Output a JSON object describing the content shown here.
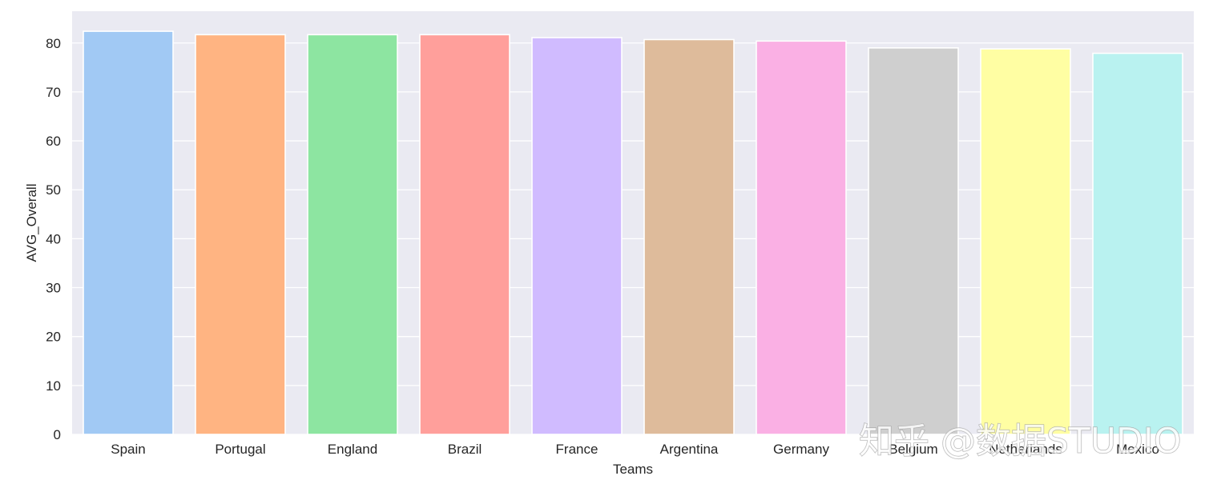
{
  "chart_data": {
    "type": "bar",
    "title": "",
    "xlabel": "Teams",
    "ylabel": "AVG_Overall",
    "categories": [
      "Spain",
      "Portugal",
      "England",
      "Brazil",
      "France",
      "Argentina",
      "Germany",
      "Belgium",
      "Netherlands",
      "Mexico"
    ],
    "values": [
      82.4,
      81.7,
      81.7,
      81.7,
      81.1,
      80.7,
      80.4,
      79.0,
      78.8,
      77.9
    ],
    "ylim": [
      0,
      86.5
    ],
    "yticks": [
      0,
      10,
      20,
      30,
      40,
      50,
      60,
      70,
      80
    ],
    "grid": true,
    "background": "#eaeaf2",
    "grid_color": "#ffffff",
    "bar_edge_color": "#ffffff",
    "colors": [
      "#a1c9f4",
      "#ffb482",
      "#8de5a1",
      "#ff9f9b",
      "#d0bbff",
      "#debb9b",
      "#fab0e4",
      "#cfcfcf",
      "#fffea3",
      "#b9f2f0"
    ]
  },
  "watermark": {
    "text": "知乎 @数据STUDIO"
  }
}
